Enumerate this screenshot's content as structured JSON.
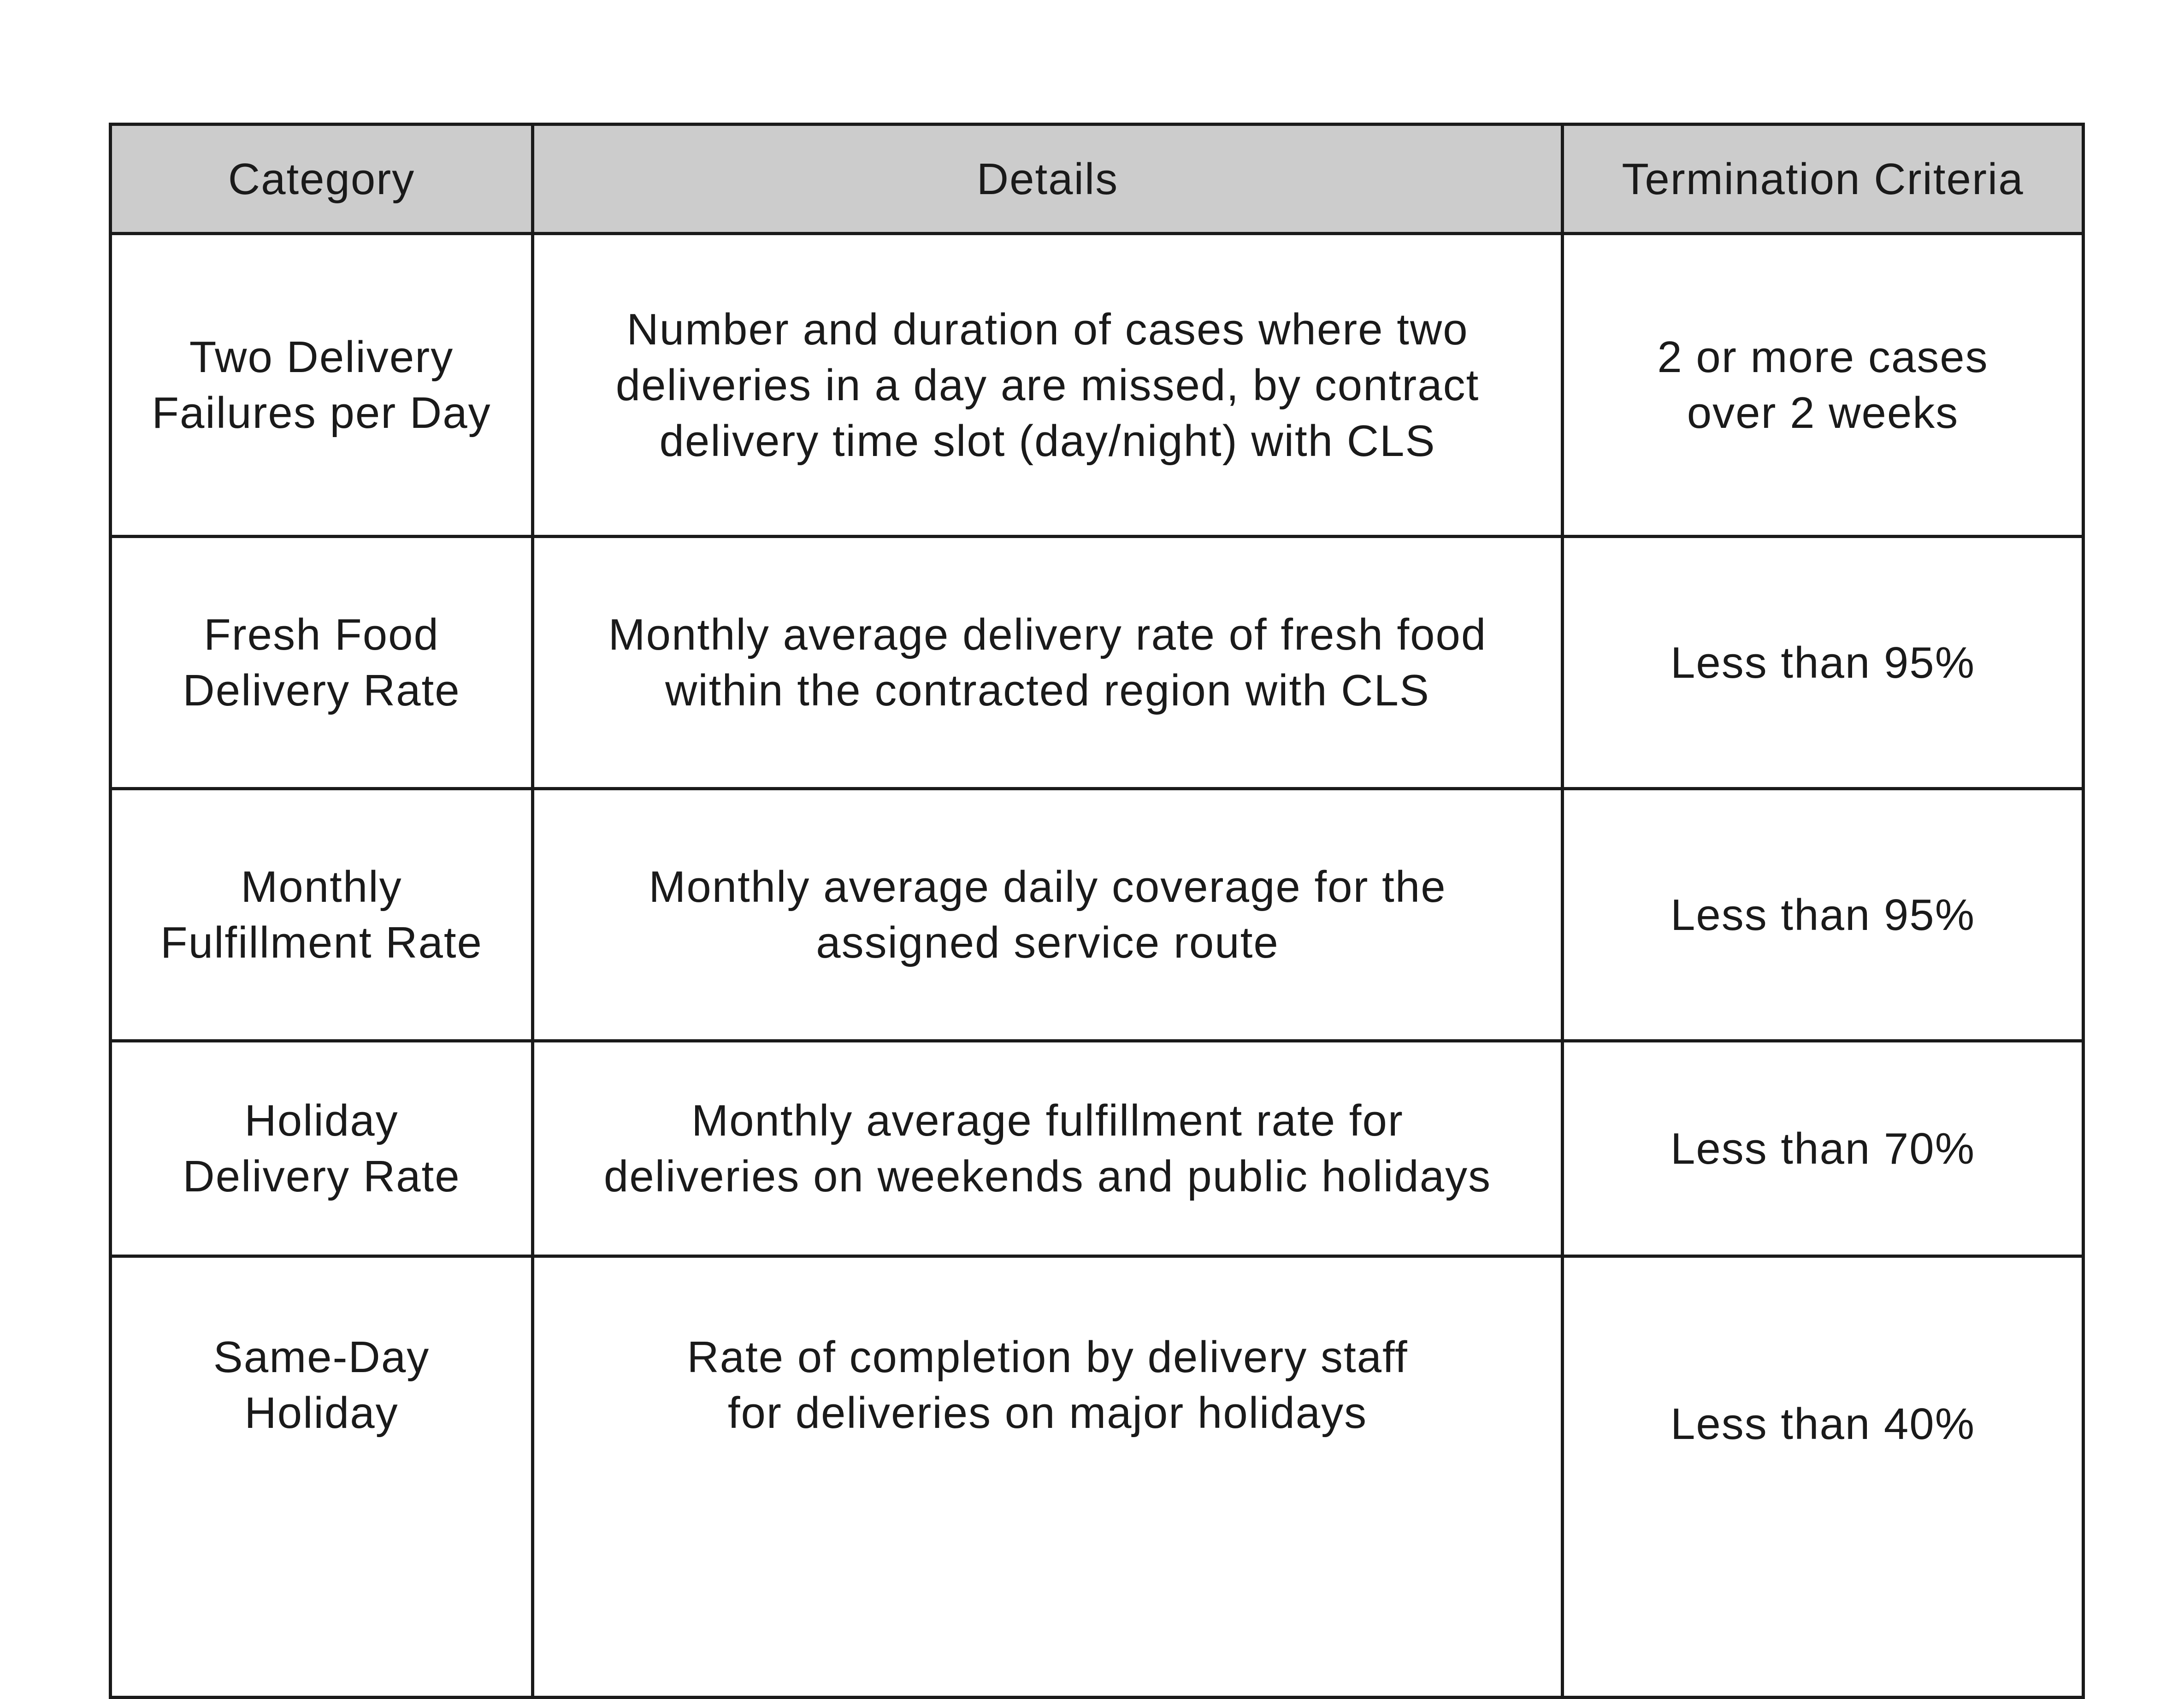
{
  "table": {
    "headers": [
      "Category",
      "Details",
      "Termination Criteria"
    ],
    "rows": [
      {
        "category": [
          "Two Delivery",
          "Failures per Day"
        ],
        "details": [
          "Number and duration of cases where two",
          "deliveries in a day are missed, by contract",
          "delivery time slot (day/night) with CLS"
        ],
        "criteria": [
          "2 or more cases",
          "over 2 weeks"
        ]
      },
      {
        "category": [
          "Fresh Food",
          "Delivery Rate"
        ],
        "details": [
          "Monthly average delivery rate of fresh food",
          "within the contracted region with CLS"
        ],
        "criteria": [
          "Less than 95%"
        ]
      },
      {
        "category": [
          "Monthly",
          "Fulfillment Rate"
        ],
        "details": [
          "Monthly average daily coverage for the",
          "assigned service route"
        ],
        "criteria": [
          "Less than 95%"
        ]
      },
      {
        "category": [
          "Holiday",
          "Delivery Rate"
        ],
        "details": [
          "Monthly average fulfillment rate for",
          "deliveries on weekends and public holidays"
        ],
        "criteria": [
          "Less than 70%"
        ]
      },
      {
        "category": [
          "Same-Day",
          "Holiday"
        ],
        "details": [
          "Rate of completion by delivery staff",
          "for deliveries on major holidays"
        ],
        "criteria": [
          "Less than 40%"
        ]
      }
    ]
  }
}
